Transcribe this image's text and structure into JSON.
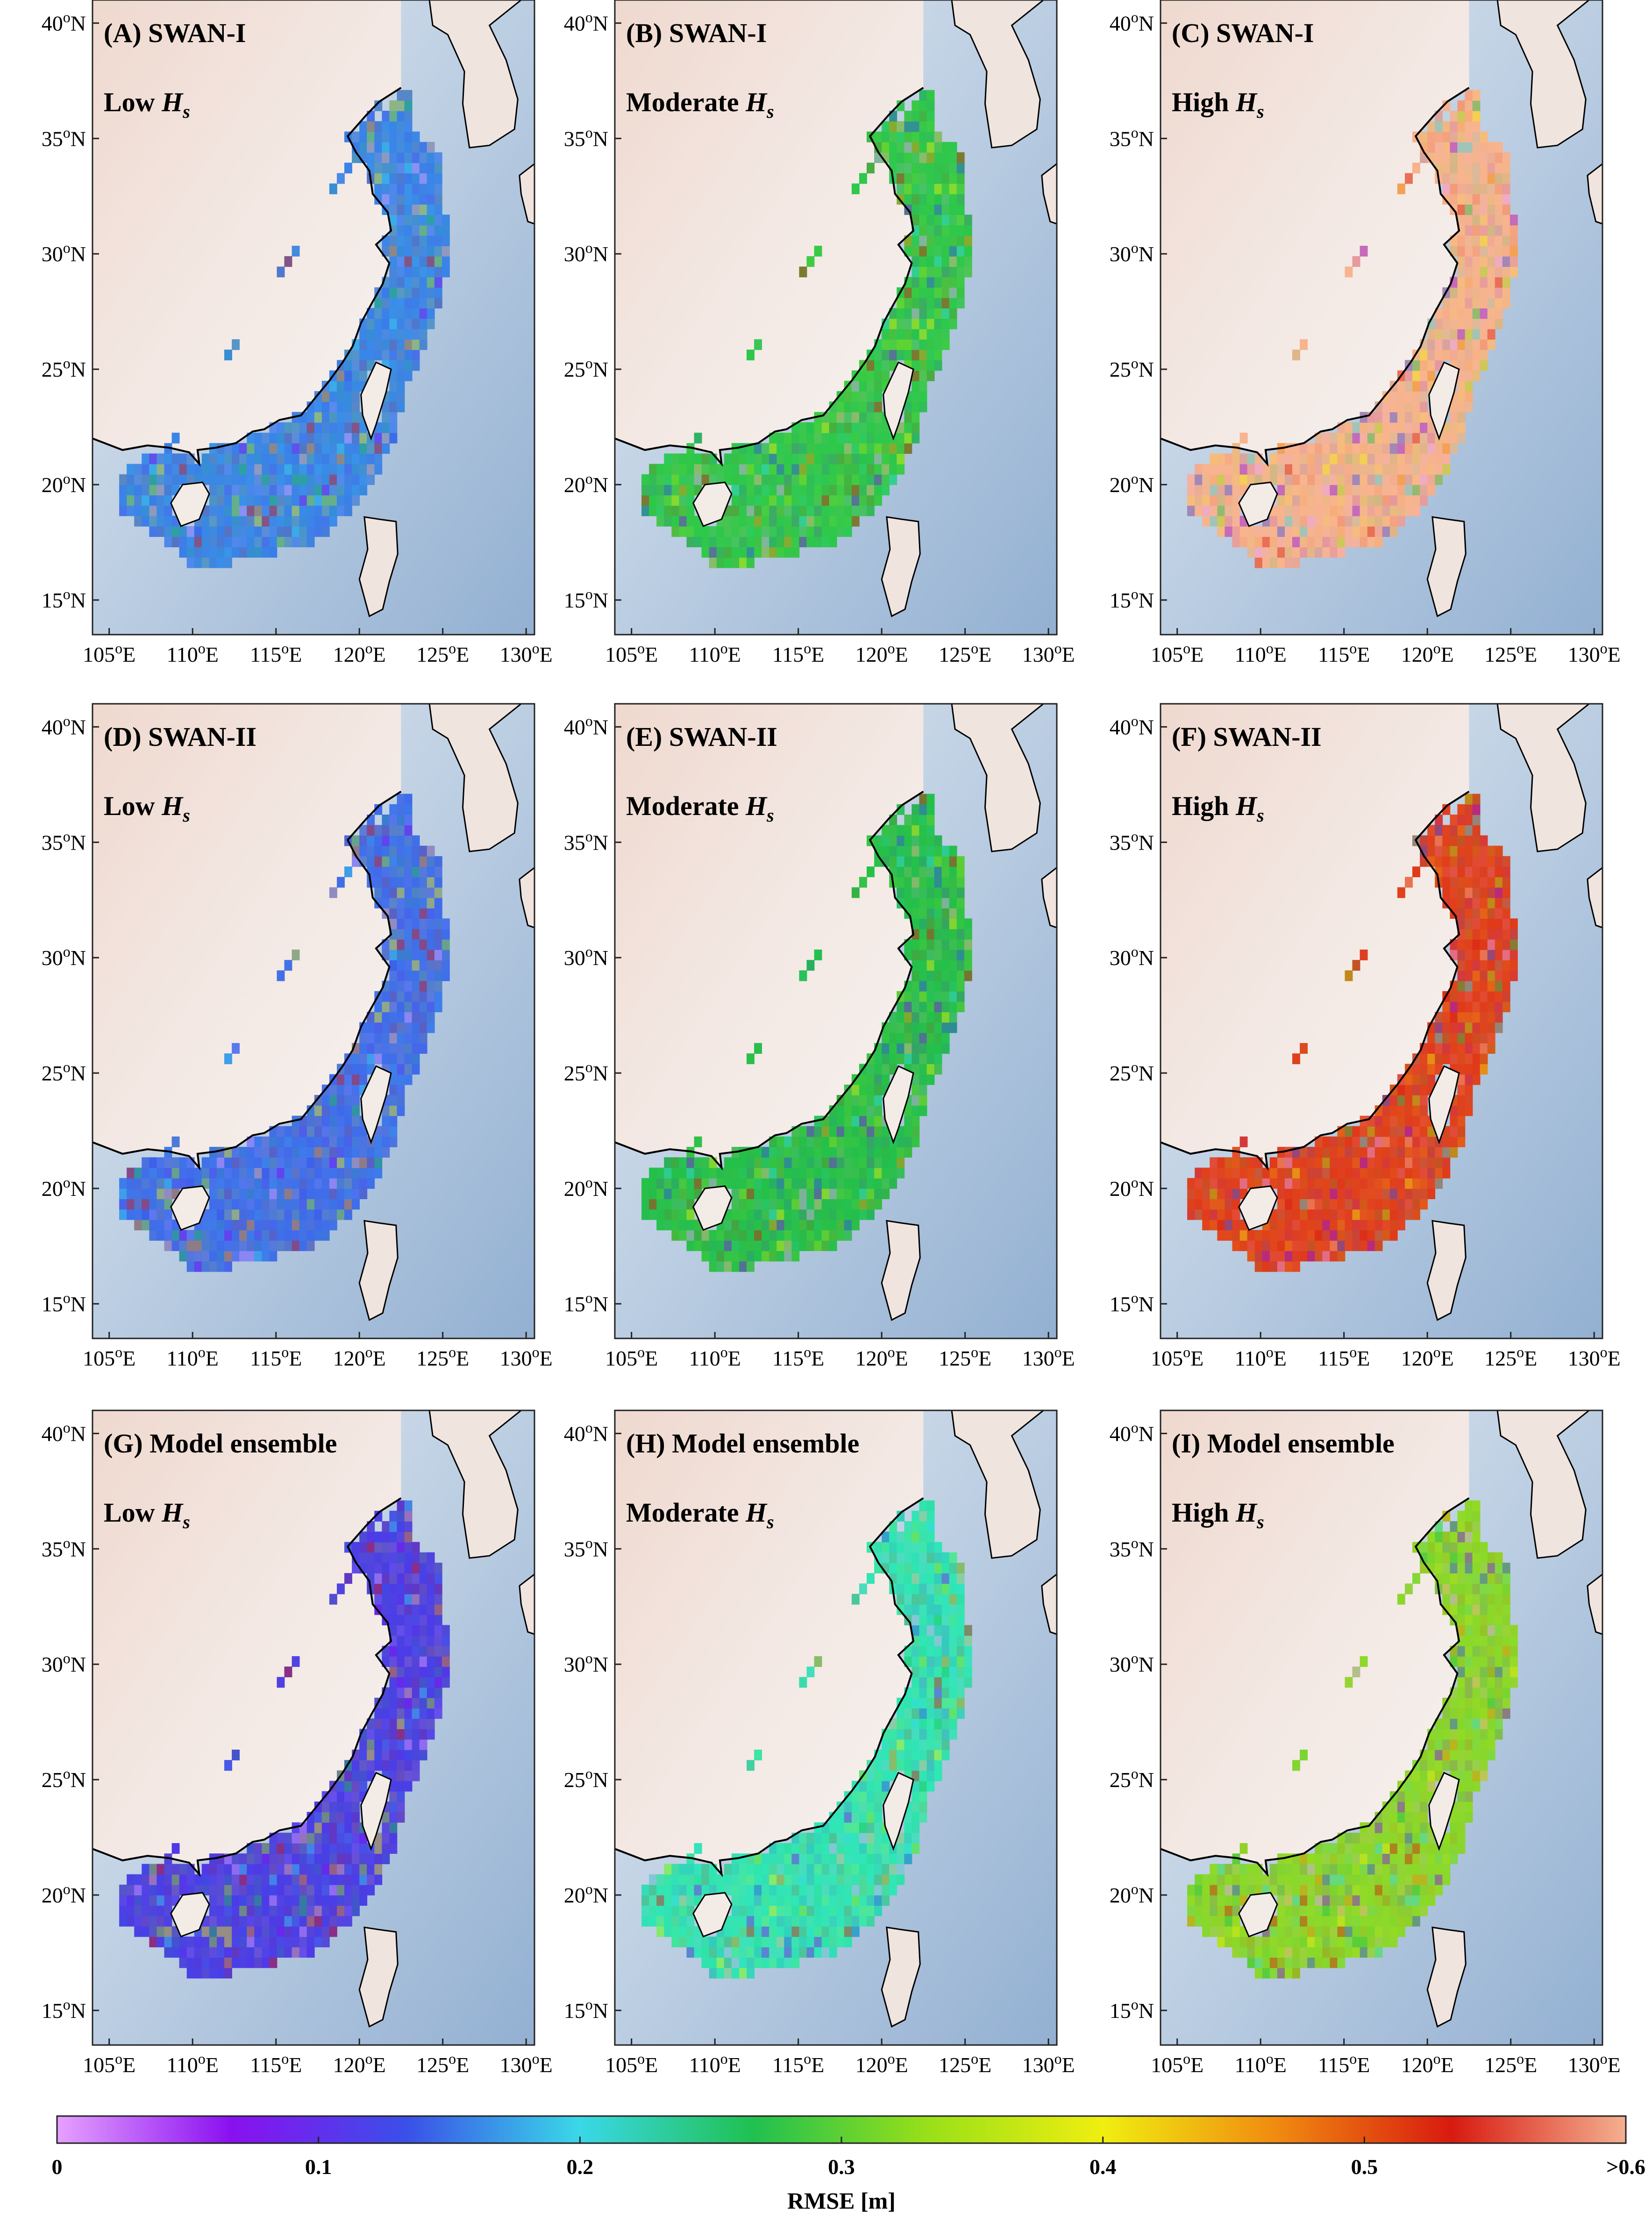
{
  "figure": {
    "longitude_ticks": [
      "105",
      "110",
      "115",
      "120",
      "125",
      "130"
    ],
    "longitude_suffix": "E",
    "latitude_ticks": [
      "40",
      "35",
      "30",
      "25",
      "20",
      "15"
    ],
    "latitude_suffix": "N",
    "degree_symbol": "o",
    "panels": [
      {
        "id": "A",
        "title": "(A) SWAN-I",
        "level": "Low",
        "level_symbol": "H",
        "level_subscript": "s",
        "dominant_color": "#3a86e8"
      },
      {
        "id": "B",
        "title": "(B) SWAN-I",
        "level": "Moderate",
        "level_symbol": "H",
        "level_subscript": "s",
        "dominant_color": "#2ec84a"
      },
      {
        "id": "C",
        "title": "(C) SWAN-I",
        "level": "High",
        "level_symbol": "H",
        "level_subscript": "s",
        "dominant_color": "#f7b48e"
      },
      {
        "id": "D",
        "title": "(D) SWAN-II",
        "level": "Low",
        "level_symbol": "H",
        "level_subscript": "s",
        "dominant_color": "#3f6fea"
      },
      {
        "id": "E",
        "title": "(E) SWAN-II",
        "level": "Moderate",
        "level_symbol": "H",
        "level_subscript": "s",
        "dominant_color": "#25c04a"
      },
      {
        "id": "F",
        "title": "(F) SWAN-II",
        "level": "High",
        "level_symbol": "H",
        "level_subscript": "s",
        "dominant_color": "#e0401c"
      },
      {
        "id": "G",
        "title": "(G) Model ensemble",
        "level": "Low",
        "level_symbol": "H",
        "level_subscript": "s",
        "dominant_color": "#4a3ee6"
      },
      {
        "id": "H",
        "title": "(H) Model ensemble",
        "level": "Moderate",
        "level_symbol": "H",
        "level_subscript": "s",
        "dominant_color": "#30e6b4"
      },
      {
        "id": "I",
        "title": "(I) Model ensemble",
        "level": "High",
        "level_symbol": "H",
        "level_subscript": "s",
        "dominant_color": "#8ad82a"
      }
    ],
    "colorbar": {
      "title": "RMSE [m]",
      "tick_labels": [
        "0",
        "0.1",
        "0.2",
        "0.3",
        "0.4",
        "0.5",
        ">0.6"
      ],
      "colors": [
        "#e6a1ff",
        "#8a10f0",
        "#3a4fe8",
        "#3ad8e8",
        "#20c050",
        "#9ae018",
        "#f0ee10",
        "#f08a10",
        "#d81a10",
        "#f4b090"
      ]
    },
    "map_colors": {
      "land": "#f1e6e0",
      "land_highlight": "#e8c9bd",
      "ocean_shallow": "#dce6ef",
      "ocean_deep": "#9fb8d6",
      "coastline": "#000000"
    }
  }
}
